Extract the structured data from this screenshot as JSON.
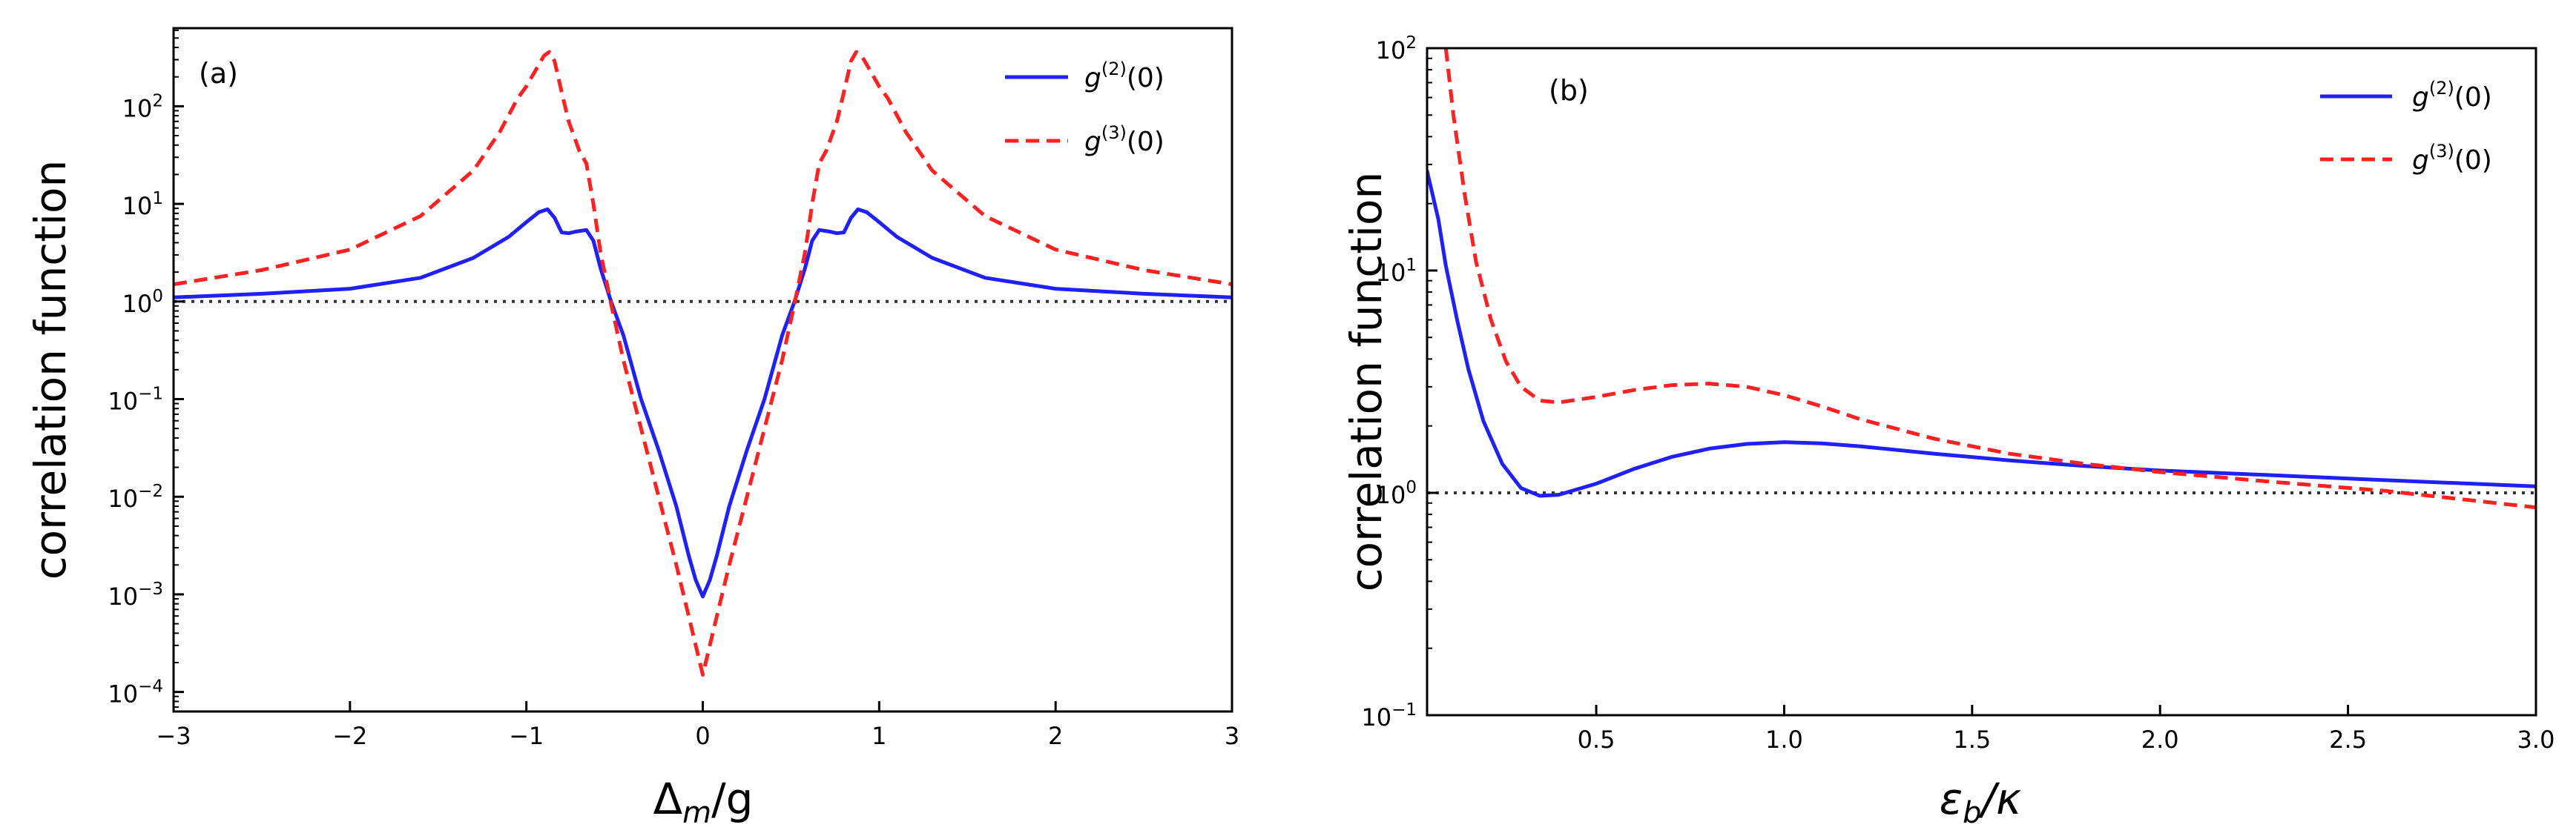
{
  "chart_data": [
    {
      "type": "line",
      "panel_label": "(a)",
      "ylabel": "correlation function",
      "xlabel": {
        "symbol": "Δ",
        "subscript": "m",
        "suffix": "/g"
      },
      "yscale": "log",
      "xlim": [
        -3,
        3
      ],
      "ylim_log10": [
        -4.2,
        2.8
      ],
      "xticks": [
        -3,
        -2,
        -1,
        0,
        1,
        2,
        3
      ],
      "xtick_labels": [
        "−3",
        "−2",
        "−1",
        "0",
        "1",
        "2",
        "3"
      ],
      "ytick_exponents": [
        -4,
        -3,
        -2,
        -1,
        0,
        1,
        2
      ],
      "ytick_base": "10",
      "ytick_exp_labels": [
        "−4",
        "−3",
        "−2",
        "−1",
        "0",
        "1",
        "2"
      ],
      "reference_line": 1,
      "legend_position": "top-right",
      "series": [
        {
          "name": "g(2)(0)",
          "legend": {
            "g": "g",
            "order": "(2)",
            "arg": "(0)"
          },
          "color": "#1f1fff",
          "style": "solid",
          "x": [
            -3,
            -2.5,
            -2,
            -1.6,
            -1.3,
            -1.1,
            -1.0,
            -0.93,
            -0.88,
            -0.84,
            -0.8,
            -0.76,
            -0.72,
            -0.66,
            -0.62,
            -0.58,
            -0.52,
            -0.45,
            -0.35,
            -0.25,
            -0.15,
            -0.08,
            -0.04,
            0,
            0.04,
            0.08,
            0.15,
            0.25,
            0.35,
            0.45,
            0.52,
            0.58,
            0.62,
            0.66,
            0.72,
            0.76,
            0.8,
            0.84,
            0.88,
            0.93,
            1.0,
            1.1,
            1.3,
            1.6,
            2,
            2.5,
            3
          ],
          "y": [
            1.1,
            1.2,
            1.35,
            1.75,
            2.8,
            4.6,
            6.5,
            8.2,
            8.8,
            7.2,
            5.1,
            5.0,
            5.2,
            5.4,
            4.2,
            2.2,
            1.0,
            0.45,
            0.1,
            0.03,
            0.008,
            0.0025,
            0.0014,
            0.00095,
            0.0014,
            0.0025,
            0.008,
            0.03,
            0.1,
            0.45,
            1.0,
            2.2,
            4.2,
            5.4,
            5.2,
            5.0,
            5.1,
            7.2,
            8.8,
            8.2,
            6.5,
            4.6,
            2.8,
            1.75,
            1.35,
            1.2,
            1.1
          ]
        },
        {
          "name": "g(3)(0)",
          "legend": {
            "g": "g",
            "order": "(3)",
            "arg": "(0)"
          },
          "color": "#ff2020",
          "style": "dashed",
          "x": [
            -3,
            -2.5,
            -2,
            -1.6,
            -1.3,
            -1.15,
            -1.05,
            -1.0,
            -0.95,
            -0.9,
            -0.87,
            -0.84,
            -0.8,
            -0.76,
            -0.7,
            -0.66,
            -0.62,
            -0.58,
            -0.52,
            -0.45,
            -0.35,
            -0.25,
            -0.15,
            -0.08,
            -0.04,
            0,
            0.04,
            0.08,
            0.15,
            0.25,
            0.35,
            0.45,
            0.52,
            0.58,
            0.62,
            0.66,
            0.7,
            0.76,
            0.8,
            0.84,
            0.87,
            0.9,
            0.95,
            1.0,
            1.05,
            1.15,
            1.3,
            1.6,
            2,
            2.5,
            3
          ],
          "y": [
            1.5,
            2.1,
            3.4,
            7.5,
            22,
            55,
            120,
            160,
            230,
            330,
            360,
            290,
            140,
            70,
            35,
            26,
            10,
            3.2,
            0.95,
            0.25,
            0.05,
            0.01,
            0.002,
            0.0006,
            0.0003,
            0.00015,
            0.0003,
            0.0006,
            0.002,
            0.01,
            0.05,
            0.25,
            0.95,
            3.2,
            10,
            26,
            35,
            70,
            140,
            290,
            360,
            330,
            230,
            160,
            120,
            55,
            22,
            7.5,
            3.4,
            2.1,
            1.5
          ]
        }
      ]
    },
    {
      "type": "line",
      "panel_label": "(b)",
      "ylabel": "correlation function",
      "xlabel": {
        "symbol": "ε",
        "subscript": "b",
        "suffix": "/κ"
      },
      "yscale": "log",
      "xlim": [
        0.05,
        3.0
      ],
      "ylim_log10": [
        -1,
        2
      ],
      "xticks": [
        0.5,
        1.0,
        1.5,
        2.0,
        2.5,
        3.0
      ],
      "xtick_labels": [
        "0.5",
        "1.0",
        "1.5",
        "2.0",
        "2.5",
        "3.0"
      ],
      "ytick_exponents": [
        -1,
        0,
        1,
        2
      ],
      "ytick_base": "10",
      "ytick_exp_labels": [
        "−1",
        "0",
        "1",
        "2"
      ],
      "reference_line": 1,
      "legend_position": "top-right",
      "series": [
        {
          "name": "g(2)(0)",
          "legend": {
            "g": "g",
            "order": "(2)",
            "arg": "(0)"
          },
          "color": "#1f1fff",
          "style": "solid",
          "x": [
            0.05,
            0.08,
            0.1,
            0.13,
            0.16,
            0.2,
            0.25,
            0.3,
            0.35,
            0.4,
            0.5,
            0.6,
            0.7,
            0.8,
            0.9,
            1.0,
            1.1,
            1.2,
            1.4,
            1.6,
            1.8,
            2.0,
            2.3,
            2.6,
            3.0
          ],
          "y": [
            28,
            17,
            10.5,
            6.0,
            3.6,
            2.1,
            1.35,
            1.05,
            0.97,
            0.98,
            1.1,
            1.28,
            1.45,
            1.58,
            1.66,
            1.69,
            1.67,
            1.62,
            1.5,
            1.4,
            1.32,
            1.26,
            1.2,
            1.14,
            1.07
          ]
        },
        {
          "name": "g(3)(0)",
          "legend": {
            "g": "g",
            "order": "(3)",
            "arg": "(0)"
          },
          "color": "#ff2020",
          "style": "dashed",
          "x": [
            0.1,
            0.12,
            0.15,
            0.18,
            0.22,
            0.26,
            0.3,
            0.35,
            0.4,
            0.5,
            0.6,
            0.7,
            0.8,
            0.9,
            1.0,
            1.1,
            1.2,
            1.4,
            1.6,
            1.8,
            2.0,
            2.3,
            2.6,
            3.0
          ],
          "y": [
            100,
            50,
            22,
            11,
            6.0,
            3.9,
            3.0,
            2.6,
            2.55,
            2.7,
            2.9,
            3.05,
            3.1,
            3.0,
            2.75,
            2.45,
            2.15,
            1.75,
            1.5,
            1.35,
            1.24,
            1.12,
            1.02,
            0.86
          ]
        }
      ]
    }
  ]
}
